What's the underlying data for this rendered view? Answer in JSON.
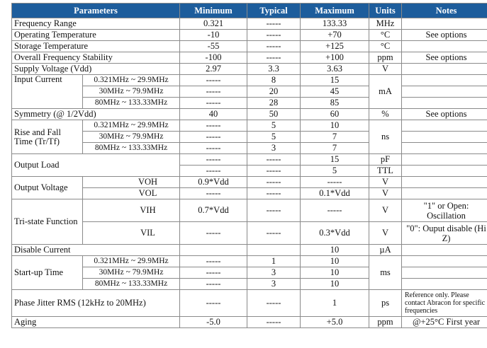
{
  "headers": [
    "Parameters",
    "Minimum",
    "Typical",
    "Maximum",
    "Units",
    "Notes"
  ],
  "r_freq": {
    "param": "Frequency Range",
    "min": "0.321",
    "typ": "-----",
    "max": "133.33",
    "unit": "MHz",
    "note": ""
  },
  "r_optemp": {
    "param": "Operating Temperature",
    "min": "-10",
    "typ": "-----",
    "max": "+70",
    "unit": "°C",
    "note": "See options"
  },
  "r_sttemp": {
    "param": "Storage Temperature",
    "min": "-55",
    "typ": "-----",
    "max": "+125",
    "unit": "°C",
    "note": ""
  },
  "r_stab": {
    "param": "Overall Frequency Stability",
    "min": "-100",
    "typ": "-----",
    "max": "+100",
    "unit": "ppm",
    "note": "See options"
  },
  "r_vdd": {
    "param": "Supply Voltage (Vdd)",
    "min": "2.97",
    "typ": "3.3",
    "max": "3.63",
    "unit": "V",
    "note": ""
  },
  "input_current": {
    "param": "Input Current",
    "unit": "mA",
    "rows": [
      {
        "range": "0.321MHz ~ 29.9MHz",
        "min": "-----",
        "typ": "8",
        "max": "15"
      },
      {
        "range": "30MHz ~ 79.9MHz",
        "min": "-----",
        "typ": "20",
        "max": "45"
      },
      {
        "range": "80MHz ~ 133.33MHz",
        "min": "-----",
        "typ": "28",
        "max": "85"
      }
    ]
  },
  "r_sym": {
    "param": "Symmetry (@ 1/2Vdd)",
    "min": "40",
    "typ": "50",
    "max": "60",
    "unit": "%",
    "note": "See options"
  },
  "rise_fall": {
    "param_line1": "Rise and Fall",
    "param_line2": "Time (Tr/Tf)",
    "unit": "ns",
    "rows": [
      {
        "range": "0.321MHz ~ 29.9MHz",
        "min": "-----",
        "typ": "5",
        "max": "10"
      },
      {
        "range": "30MHz ~ 79.9MHz",
        "min": "-----",
        "typ": "5",
        "max": "7"
      },
      {
        "range": "80MHz ~ 133.33MHz",
        "min": "-----",
        "typ": "3",
        "max": "7"
      }
    ]
  },
  "output_load": {
    "param": "Output Load",
    "rows": [
      {
        "min": "-----",
        "typ": "-----",
        "max": "15",
        "unit": "pF"
      },
      {
        "min": "-----",
        "typ": "-----",
        "max": "5",
        "unit": "TTL"
      }
    ]
  },
  "output_voltage": {
    "param": "Output Voltage",
    "rows": [
      {
        "sym": "VOH",
        "min": "0.9*Vdd",
        "typ": "-----",
        "max": "-----",
        "unit": "V"
      },
      {
        "sym": "VOL",
        "min": "-----",
        "typ": "-----",
        "max": "0.1*Vdd",
        "unit": "V"
      }
    ]
  },
  "tristate": {
    "param": "Tri-state Function",
    "rows": [
      {
        "sym": "VIH",
        "min": "0.7*Vdd",
        "typ": "-----",
        "max": "-----",
        "unit": "V",
        "note": "\"1\" or Open: Oscillation"
      },
      {
        "sym": "VIL",
        "min": "-----",
        "typ": "-----",
        "max": "0.3*Vdd",
        "unit": "V",
        "note": "\"0\": Ouput disable (Hi Z)"
      }
    ]
  },
  "r_disable": {
    "param": "Disable Current",
    "min": "",
    "typ": "",
    "max": "10",
    "unit": "µA",
    "note": ""
  },
  "startup": {
    "param": "Start-up Time",
    "unit": "ms",
    "rows": [
      {
        "range": "0.321MHz ~ 29.9MHz",
        "min": "-----",
        "typ": "1",
        "max": "10"
      },
      {
        "range": "30MHz ~ 79.9MHz",
        "min": "-----",
        "typ": "3",
        "max": "10"
      },
      {
        "range": "80MHz ~ 133.33MHz",
        "min": "-----",
        "typ": "3",
        "max": "10"
      }
    ]
  },
  "r_jitter": {
    "param": "Phase Jitter RMS (12kHz to 20MHz)",
    "min": "-----",
    "typ": "-----",
    "max": "1",
    "unit": "ps",
    "note": "Reference only. Please contact Abracon for specific frequencies"
  },
  "r_aging": {
    "param": "Aging",
    "min": "-5.0",
    "typ": "-----",
    "max": "+5.0",
    "unit": "ppm",
    "note": "@+25°C  First year"
  }
}
